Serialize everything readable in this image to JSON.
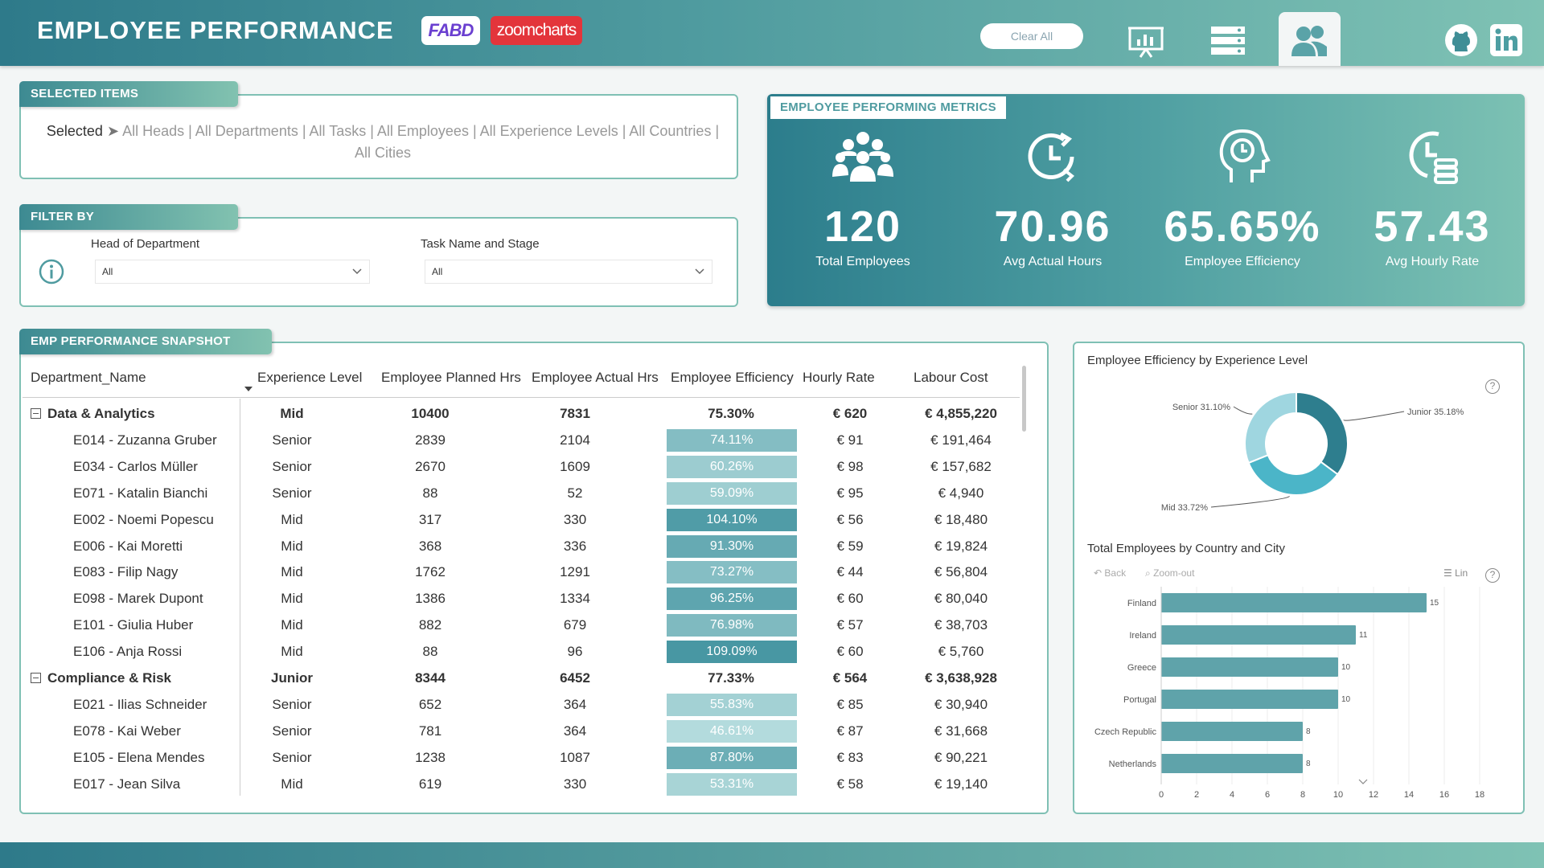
{
  "header": {
    "title": "EMPLOYEE PERFORMANCE",
    "logo_fabd": "FABD",
    "logo_zoomcharts": "zoomcharts",
    "clear_all": "Clear All"
  },
  "selected": {
    "label": "SELECTED ITEMS",
    "prefix": "Selected",
    "text": "All Heads | All Departments | All Tasks | All Employees | All Experience Levels | All Countries | All Cities"
  },
  "filter": {
    "label": "FILTER BY",
    "head_label": "Head of Department",
    "head_value": "All",
    "task_label": "Task Name and Stage",
    "task_value": "All"
  },
  "metrics": {
    "label": "EMPLOYEE PERFORMING METRICS",
    "items": [
      {
        "value": "120",
        "label": "Total Employees"
      },
      {
        "value": "70.96",
        "label": "Avg Actual Hours"
      },
      {
        "value": "65.65%",
        "label": "Employee Efficiency"
      },
      {
        "value": "57.43",
        "label": "Avg Hourly Rate"
      }
    ]
  },
  "snapshot": {
    "label": "EMP PERFORMANCE SNAPSHOT",
    "columns": [
      "Department_Name",
      "Experience Level",
      "Employee Planned Hrs",
      "Employee Actual Hrs",
      "Employee Efficiency",
      "Hourly Rate",
      "Labour Cost"
    ],
    "rows": [
      {
        "type": "group",
        "name": "Data & Analytics",
        "level": "Mid",
        "planned": "10400",
        "actual": "7831",
        "eff": "75.30%",
        "rate": "€ 620",
        "cost": "€ 4,855,220"
      },
      {
        "type": "item",
        "name": "E014 - Zuzanna Gruber",
        "level": "Senior",
        "planned": "2839",
        "actual": "2104",
        "eff": "74.11%",
        "effv": 74.11,
        "rate": "€ 91",
        "cost": "€ 191,464"
      },
      {
        "type": "item",
        "name": "E034 - Carlos Müller",
        "level": "Senior",
        "planned": "2670",
        "actual": "1609",
        "eff": "60.26%",
        "effv": 60.26,
        "rate": "€ 98",
        "cost": "€ 157,682"
      },
      {
        "type": "item",
        "name": "E071 - Katalin Bianchi",
        "level": "Senior",
        "planned": "88",
        "actual": "52",
        "eff": "59.09%",
        "effv": 59.09,
        "rate": "€ 95",
        "cost": "€ 4,940"
      },
      {
        "type": "item",
        "name": "E002 - Noemi Popescu",
        "level": "Mid",
        "planned": "317",
        "actual": "330",
        "eff": "104.10%",
        "effv": 104.1,
        "rate": "€ 56",
        "cost": "€ 18,480"
      },
      {
        "type": "item",
        "name": "E006 - Kai Moretti",
        "level": "Mid",
        "planned": "368",
        "actual": "336",
        "eff": "91.30%",
        "effv": 91.3,
        "rate": "€ 59",
        "cost": "€ 19,824"
      },
      {
        "type": "item",
        "name": "E083 - Filip Nagy",
        "level": "Mid",
        "planned": "1762",
        "actual": "1291",
        "eff": "73.27%",
        "effv": 73.27,
        "rate": "€ 44",
        "cost": "€ 56,804"
      },
      {
        "type": "item",
        "name": "E098 - Marek Dupont",
        "level": "Mid",
        "planned": "1386",
        "actual": "1334",
        "eff": "96.25%",
        "effv": 96.25,
        "rate": "€ 60",
        "cost": "€ 80,040"
      },
      {
        "type": "item",
        "name": "E101 - Giulia Huber",
        "level": "Mid",
        "planned": "882",
        "actual": "679",
        "eff": "76.98%",
        "effv": 76.98,
        "rate": "€ 57",
        "cost": "€ 38,703"
      },
      {
        "type": "item",
        "name": "E106 - Anja Rossi",
        "level": "Mid",
        "planned": "88",
        "actual": "96",
        "eff": "109.09%",
        "effv": 109.09,
        "rate": "€ 60",
        "cost": "€ 5,760"
      },
      {
        "type": "group",
        "name": "Compliance & Risk",
        "level": "Junior",
        "planned": "8344",
        "actual": "6452",
        "eff": "77.33%",
        "rate": "€ 564",
        "cost": "€ 3,638,928"
      },
      {
        "type": "item",
        "name": "E021 - Ilias Schneider",
        "level": "Senior",
        "planned": "652",
        "actual": "364",
        "eff": "55.83%",
        "effv": 55.83,
        "rate": "€ 85",
        "cost": "€ 30,940"
      },
      {
        "type": "item",
        "name": "E078 - Kai Weber",
        "level": "Senior",
        "planned": "781",
        "actual": "364",
        "eff": "46.61%",
        "effv": 46.61,
        "rate": "€ 87",
        "cost": "€ 31,668"
      },
      {
        "type": "item",
        "name": "E105 - Elena Mendes",
        "level": "Senior",
        "planned": "1238",
        "actual": "1087",
        "eff": "87.80%",
        "effv": 87.8,
        "rate": "€ 83",
        "cost": "€ 90,221"
      },
      {
        "type": "item",
        "name": "E017 - Jean Silva",
        "level": "Mid",
        "planned": "619",
        "actual": "330",
        "eff": "53.31%",
        "effv": 53.31,
        "rate": "€ 58",
        "cost": "€ 19,140"
      }
    ]
  },
  "donut": {
    "title": "Employee Efficiency by Experience Level",
    "help": "?",
    "slices": [
      {
        "label": "Junior 35.18%",
        "value": 35.18,
        "color": "#2e7e8e"
      },
      {
        "label": "Mid 33.72%",
        "value": 33.72,
        "color": "#4bb5c8"
      },
      {
        "label": "Senior 31.10%",
        "value": 31.1,
        "color": "#9fd6e0"
      }
    ]
  },
  "bars": {
    "title": "Total Employees by Country and City",
    "back": "Back",
    "zoomout": "Zoom-out",
    "lin": "Lin",
    "help": "?",
    "color": "#5fa3aa",
    "categories": [
      "Finland",
      "Ireland",
      "Greece",
      "Portugal",
      "Czech Republic",
      "Netherlands"
    ],
    "values": [
      15,
      11,
      10,
      10,
      8,
      8
    ],
    "ticks": [
      "0",
      "2",
      "4",
      "6",
      "8",
      "10",
      "12",
      "14",
      "16",
      "18"
    ],
    "xlim": [
      0,
      18
    ]
  }
}
